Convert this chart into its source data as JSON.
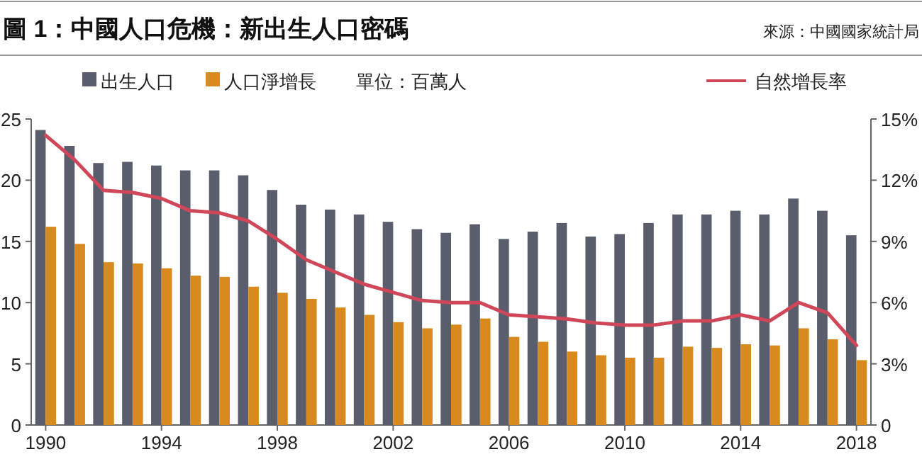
{
  "chart_data": {
    "type": "bar",
    "title": "圖 1：中國人口危機：新出生人口密碼",
    "annotations": [
      "來源：中國國家統計局",
      "單位：百萬人"
    ],
    "categories": [
      "1990",
      null,
      null,
      null,
      "1994",
      null,
      null,
      null,
      "1998",
      null,
      null,
      null,
      "2002",
      null,
      null,
      null,
      "2006",
      null,
      null,
      null,
      "2010",
      null,
      null,
      null,
      "2014",
      null,
      null,
      null,
      "2018"
    ],
    "series": [
      {
        "name": "出生人口",
        "color": "#5a5d6b",
        "values": [
          24.1,
          22.8,
          21.4,
          21.5,
          21.2,
          20.8,
          20.8,
          20.4,
          19.2,
          18.0,
          17.6,
          17.2,
          16.6,
          16.0,
          15.7,
          16.4,
          15.2,
          15.8,
          16.5,
          15.4,
          15.6,
          16.5,
          17.2,
          17.2,
          17.5,
          17.2,
          18.5,
          17.5,
          15.5
        ]
      },
      {
        "name": "人口淨增長",
        "color": "#d98a1f",
        "values": [
          16.2,
          14.8,
          13.3,
          13.2,
          12.8,
          12.2,
          12.1,
          11.3,
          10.8,
          10.3,
          9.6,
          9.0,
          8.4,
          7.9,
          8.2,
          8.7,
          7.2,
          6.8,
          6.0,
          5.7,
          5.5,
          5.5,
          6.4,
          6.3,
          6.6,
          6.5,
          7.9,
          7.0,
          5.3
        ]
      },
      {
        "name": "自然增長率",
        "color": "#d0475a",
        "type": "line",
        "axis": "y2",
        "values": [
          14.2,
          13.0,
          11.5,
          11.4,
          11.1,
          10.5,
          10.4,
          10.0,
          9.1,
          8.1,
          7.5,
          6.9,
          6.5,
          6.1,
          6.0,
          6.0,
          5.4,
          5.3,
          5.2,
          5.0,
          4.9,
          4.9,
          5.1,
          5.1,
          5.4,
          5.1,
          6.0,
          5.5,
          3.9
        ]
      }
    ],
    "ylim": [
      0,
      25
    ],
    "yticks": [
      0,
      5,
      10,
      15,
      20,
      25
    ],
    "y2lim": [
      0,
      15
    ],
    "y2ticks": [
      {
        "value": 0,
        "label": "0"
      },
      {
        "value": 3,
        "label": "3%"
      },
      {
        "value": 6,
        "label": "6%"
      },
      {
        "value": 9,
        "label": "9%"
      },
      {
        "value": 12,
        "label": "12%"
      },
      {
        "value": 15,
        "label": "15%"
      }
    ],
    "legend": "top"
  }
}
